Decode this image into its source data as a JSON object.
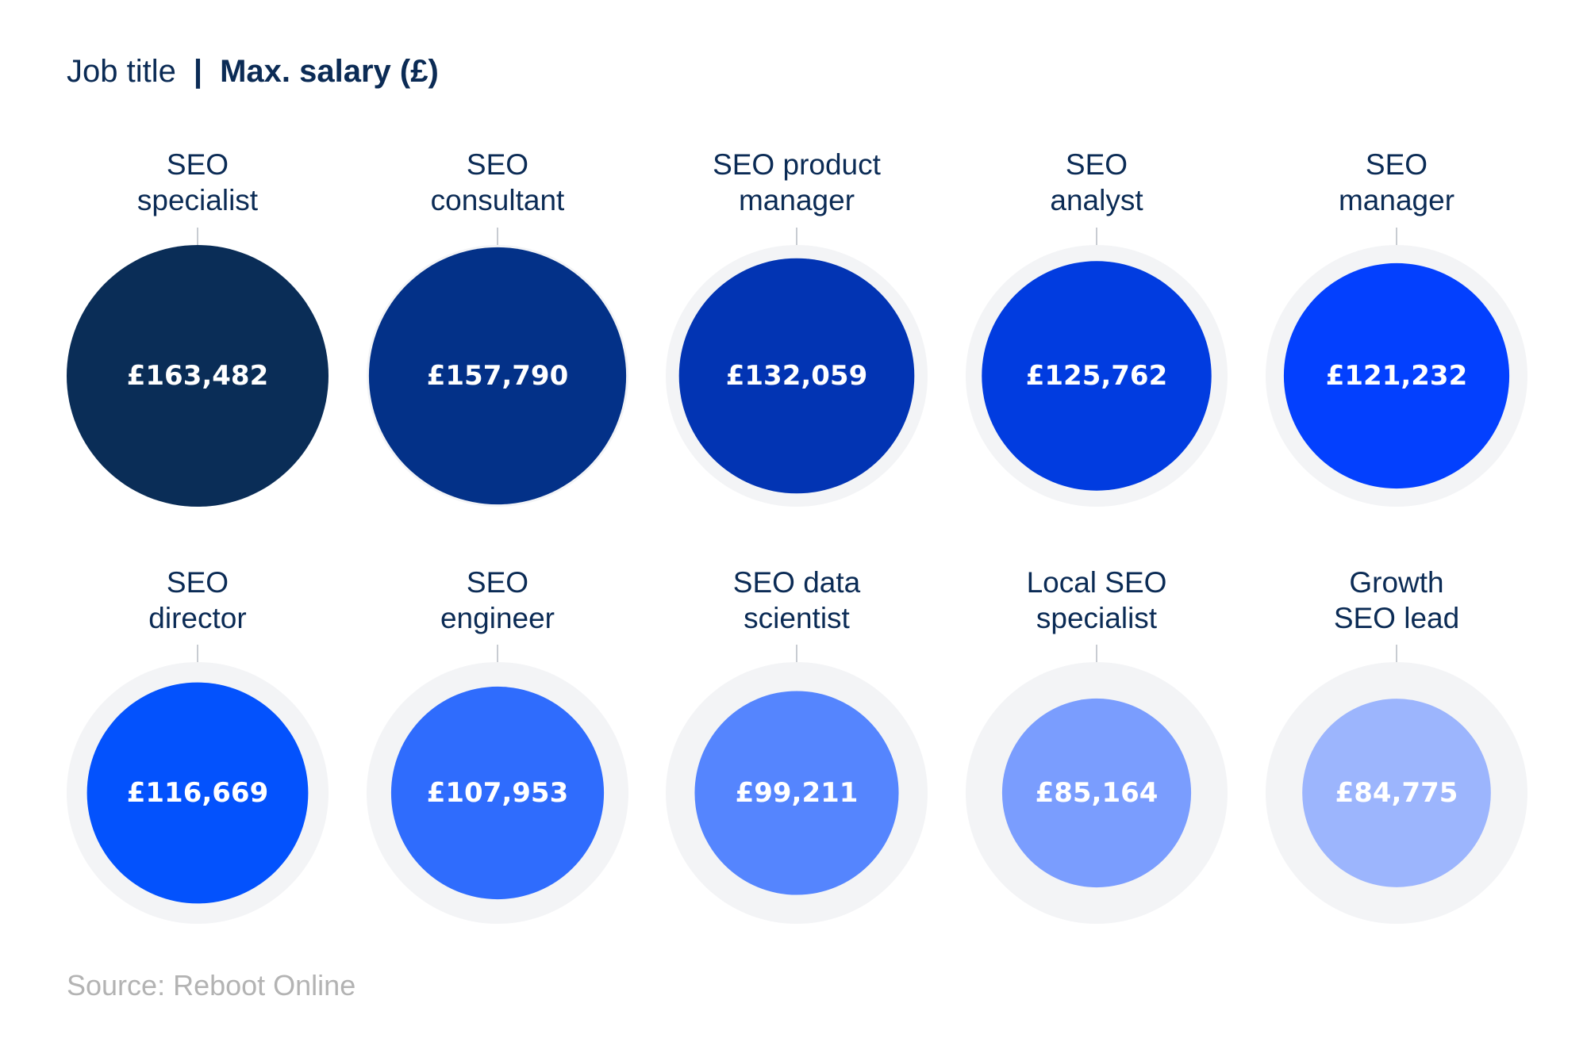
{
  "header": {
    "dimension_label": "Job title",
    "separator": "|",
    "metric_label": "Max. salary (£)"
  },
  "chart_data": {
    "type": "bubble",
    "title": "Job title | Max. salary (£)",
    "unit": "£",
    "max_reference_value": 163482,
    "categories": [
      [
        "SEO",
        "specialist"
      ],
      [
        "SEO",
        "consultant"
      ],
      [
        "SEO product",
        "manager"
      ],
      [
        "SEO",
        "analyst"
      ],
      [
        "SEO",
        "manager"
      ],
      [
        "SEO",
        "director"
      ],
      [
        "SEO",
        "engineer"
      ],
      [
        "SEO data",
        "scientist"
      ],
      [
        "Local SEO",
        "specialist"
      ],
      [
        "Growth",
        "SEO lead"
      ]
    ],
    "values": [
      163482,
      157790,
      132059,
      125762,
      121232,
      116669,
      107953,
      99211,
      85164,
      84775
    ],
    "value_labels": [
      "£163,482",
      "£157,790",
      "£132,059",
      "£125,762",
      "£121,232",
      "£116,669",
      "£107,953",
      "£99,211",
      "£85,164",
      "£84,775"
    ],
    "colors": [
      "#0a2d57",
      "#033188",
      "#0234b3",
      "#013ce0",
      "#0340fe",
      "#0352fd",
      "#2f6cfd",
      "#5585fe",
      "#7a9dfe",
      "#9cb5fd"
    ],
    "background_ring_color": "#f3f4f6",
    "grid": false,
    "legend": "none"
  },
  "source": {
    "text": "Source: Reboot Online"
  }
}
